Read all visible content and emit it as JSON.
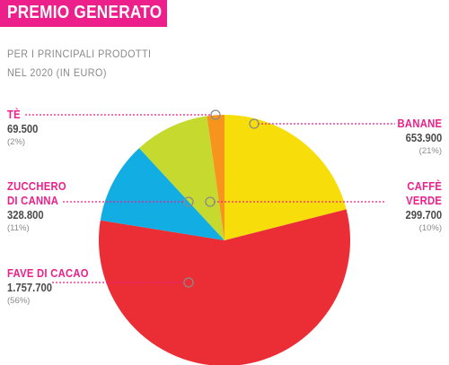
{
  "header": {
    "title": "PREMIO GENERATO",
    "subtitle_line1": "PER I PRINCIPALI PRODOTTI",
    "subtitle_line2": "NEL 2020 (IN EURO)"
  },
  "labels": [
    {
      "name_lines": [
        "TÈ"
      ],
      "value": "69.500",
      "percent": "(2%)"
    },
    {
      "name_lines": [
        "BANANE"
      ],
      "value": "653.900",
      "percent": "(21%)"
    },
    {
      "name_lines": [
        "ZUCCHERO",
        "DI CANNA"
      ],
      "value": "328.800",
      "percent": "(11%)"
    },
    {
      "name_lines": [
        "CAFFÈ",
        "VERDE"
      ],
      "value": "299.700",
      "percent": "(10%)"
    },
    {
      "name_lines": [
        "FAVE DI CACAO"
      ],
      "value": "1.757.700",
      "percent": "(56%)"
    }
  ],
  "colors": {
    "accent": "#ec1f8b",
    "leader": "#ec1f8b",
    "marker_stroke": "#8a8a8a"
  },
  "chart_data": {
    "type": "pie",
    "title": "PREMIO GENERATO",
    "subtitle": "PER I PRINCIPALI PRODOTTI NEL 2020 (IN EURO)",
    "unit": "EURO",
    "slices": [
      {
        "label": "BANANE",
        "value": 653900,
        "percent": 21,
        "color": "#f7de0a"
      },
      {
        "label": "FAVE DI CACAO",
        "value": 1757700,
        "percent": 56,
        "color": "#eb2d35"
      },
      {
        "label": "ZUCCHERO DI CANNA",
        "value": 328800,
        "percent": 11,
        "color": "#12aee3"
      },
      {
        "label": "CAFFÈ VERDE",
        "value": 299700,
        "percent": 10,
        "color": "#c5d92e"
      },
      {
        "label": "TÈ",
        "value": 69500,
        "percent": 2,
        "color": "#f7941d"
      }
    ]
  }
}
